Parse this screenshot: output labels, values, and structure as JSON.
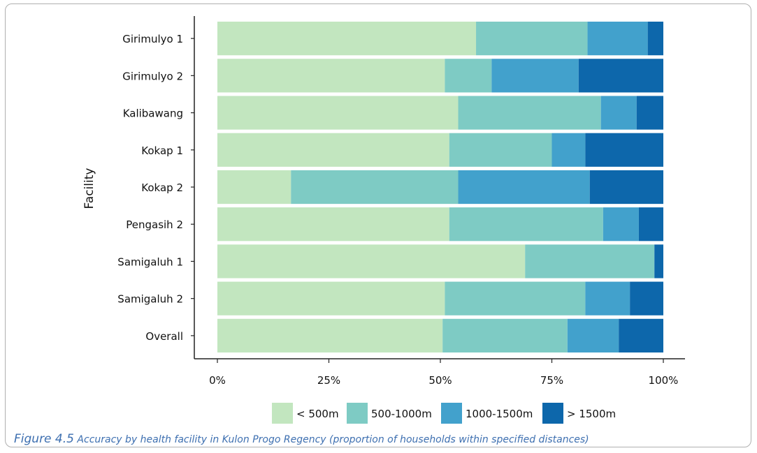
{
  "chart_data": {
    "type": "bar",
    "orientation": "horizontal",
    "stacked": true,
    "ylabel": "Facility",
    "xlabel": "",
    "xlim": [
      0,
      100
    ],
    "x_ticks": [
      "0%",
      "25%",
      "50%",
      "75%",
      "100%"
    ],
    "categories": [
      "Girimulyo 1",
      "Girimulyo 2",
      "Kalibawang",
      "Kokap 1",
      "Kokap 2",
      "Pengasih 2",
      "Samigaluh 1",
      "Samigaluh 2",
      "Overall"
    ],
    "series": [
      {
        "name": "< 500m",
        "color": "#c2e6bf",
        "values": [
          58,
          51,
          54,
          52,
          16.5,
          52,
          69,
          51,
          50.5
        ]
      },
      {
        "name": "500-1000m",
        "color": "#7ecbc4",
        "values": [
          25,
          10.5,
          32,
          23,
          37.5,
          34.5,
          29,
          31.5,
          28
        ]
      },
      {
        "name": "1000-1500m",
        "color": "#42a1cc",
        "values": [
          13.5,
          19.5,
          8,
          7.5,
          29.5,
          8,
          0,
          10,
          11.5
        ]
      },
      {
        "name": "> 1500m",
        "color": "#0d67ab",
        "values": [
          3.5,
          19,
          6,
          17.5,
          16.5,
          5.5,
          2,
          7.5,
          10
        ]
      }
    ],
    "grid": false,
    "legend_position": "bottom"
  },
  "caption": {
    "figure_label": "Figure 4.5",
    "text": "Accuracy by health facility in Kulon Progo Regency (proportion of households within specified distances)"
  }
}
